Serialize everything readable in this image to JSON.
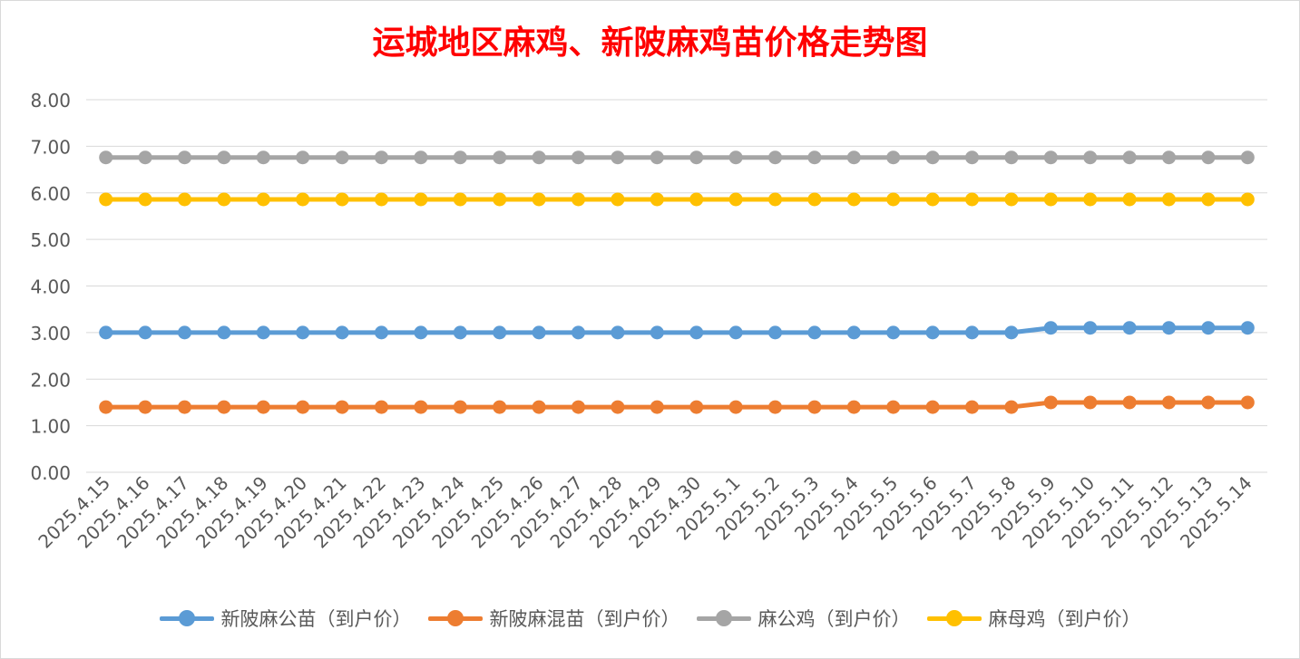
{
  "chart_data": {
    "type": "line",
    "title": "运城地区麻鸡、新陂麻鸡苗价格走势图",
    "categories": [
      "2025.4.15",
      "2025.4.16",
      "2025.4.17",
      "2025.4.18",
      "2025.4.19",
      "2025.4.20",
      "2025.4.21",
      "2025.4.22",
      "2025.4.23",
      "2025.4.24",
      "2025.4.25",
      "2025.4.26",
      "2025.4.27",
      "2025.4.28",
      "2025.4.29",
      "2025.4.30",
      "2025.5.1",
      "2025.5.2",
      "2025.5.3",
      "2025.5.4",
      "2025.5.5",
      "2025.5.6",
      "2025.5.7",
      "2025.5.8",
      "2025.5.9",
      "2025.5.10",
      "2025.5.11",
      "2025.5.12",
      "2025.5.13",
      "2025.5.14"
    ],
    "ylim": [
      0,
      8
    ],
    "yticks": [
      "0.00",
      "1.00",
      "2.00",
      "3.00",
      "4.00",
      "5.00",
      "6.00",
      "7.00",
      "8.00"
    ],
    "grid": true,
    "legend_position": "bottom",
    "series": [
      {
        "name": "新陂麻公苗（到户价）",
        "color": "#5b9bd5",
        "values": [
          3,
          3,
          3,
          3,
          3,
          3,
          3,
          3,
          3,
          3,
          3,
          3,
          3,
          3,
          3,
          3,
          3,
          3,
          3,
          3,
          3,
          3,
          3,
          3,
          3.1,
          3.1,
          3.1,
          3.1,
          3.1,
          3.1
        ]
      },
      {
        "name": "新陂麻混苗（到户价）",
        "color": "#ed7d31",
        "values": [
          1.4,
          1.4,
          1.4,
          1.4,
          1.4,
          1.4,
          1.4,
          1.4,
          1.4,
          1.4,
          1.4,
          1.4,
          1.4,
          1.4,
          1.4,
          1.4,
          1.4,
          1.4,
          1.4,
          1.4,
          1.4,
          1.4,
          1.4,
          1.4,
          1.5,
          1.5,
          1.5,
          1.5,
          1.5,
          1.5
        ]
      },
      {
        "name": "麻公鸡（到户价）",
        "color": "#a5a5a5",
        "values": [
          6.76,
          6.76,
          6.76,
          6.76,
          6.76,
          6.76,
          6.76,
          6.76,
          6.76,
          6.76,
          6.76,
          6.76,
          6.76,
          6.76,
          6.76,
          6.76,
          6.76,
          6.76,
          6.76,
          6.76,
          6.76,
          6.76,
          6.76,
          6.76,
          6.76,
          6.76,
          6.76,
          6.76,
          6.76,
          6.76
        ]
      },
      {
        "name": "麻母鸡（到户价）",
        "color": "#ffc000",
        "values": [
          5.86,
          5.86,
          5.86,
          5.86,
          5.86,
          5.86,
          5.86,
          5.86,
          5.86,
          5.86,
          5.86,
          5.86,
          5.86,
          5.86,
          5.86,
          5.86,
          5.86,
          5.86,
          5.86,
          5.86,
          5.86,
          5.86,
          5.86,
          5.86,
          5.86,
          5.86,
          5.86,
          5.86,
          5.86,
          5.86
        ]
      }
    ]
  }
}
